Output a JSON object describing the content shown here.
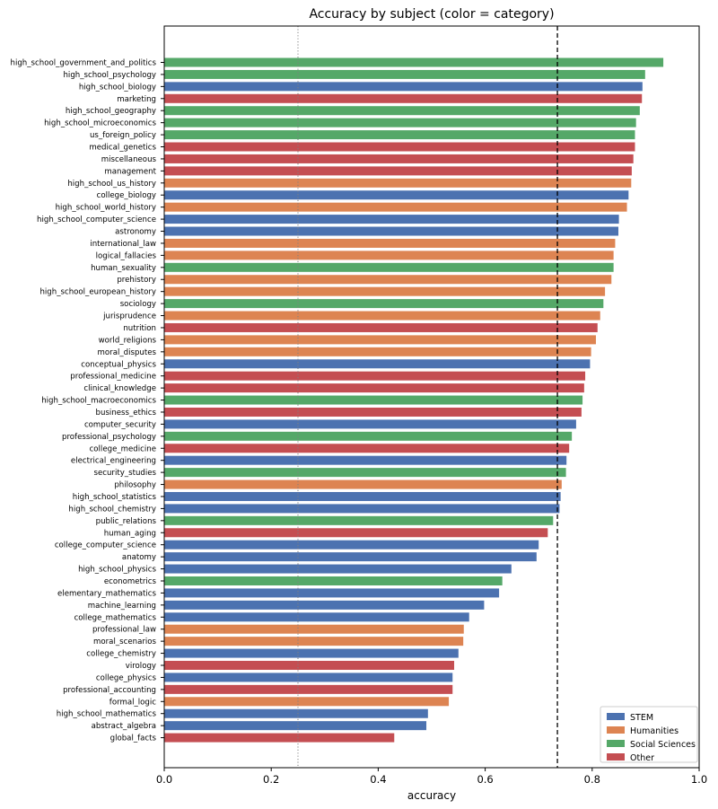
{
  "chart_data": {
    "type": "bar",
    "orientation": "horizontal",
    "title": "Accuracy by subject (color = category)",
    "xlabel": "accuracy",
    "ylabel": "",
    "xlim": [
      0.0,
      1.0
    ],
    "xticks": [
      "0.0",
      "0.2",
      "0.4",
      "0.6",
      "0.8",
      "1.0"
    ],
    "grid": false,
    "legend_position": "bottom-right",
    "reference_lines": [
      {
        "x": 0.25,
        "style": "dotted",
        "color": "#808080"
      },
      {
        "x": 0.735,
        "style": "dashed",
        "color": "#000000"
      }
    ],
    "categories_legend": [
      {
        "name": "STEM",
        "color": "#4c72b0"
      },
      {
        "name": "Humanities",
        "color": "#dd8452"
      },
      {
        "name": "Social Sciences",
        "color": "#55a868"
      },
      {
        "name": "Other",
        "color": "#c44e52"
      }
    ],
    "bars": [
      {
        "label": "high_school_government_and_politics",
        "value": 0.933,
        "category": "Social Sciences"
      },
      {
        "label": "high_school_psychology",
        "value": 0.899,
        "category": "Social Sciences"
      },
      {
        "label": "high_school_biology",
        "value": 0.894,
        "category": "STEM"
      },
      {
        "label": "marketing",
        "value": 0.893,
        "category": "Other"
      },
      {
        "label": "high_school_geography",
        "value": 0.889,
        "category": "Social Sciences"
      },
      {
        "label": "high_school_microeconomics",
        "value": 0.882,
        "category": "Social Sciences"
      },
      {
        "label": "us_foreign_policy",
        "value": 0.88,
        "category": "Social Sciences"
      },
      {
        "label": "medical_genetics",
        "value": 0.88,
        "category": "Other"
      },
      {
        "label": "miscellaneous",
        "value": 0.877,
        "category": "Other"
      },
      {
        "label": "management",
        "value": 0.874,
        "category": "Other"
      },
      {
        "label": "high_school_us_history",
        "value": 0.873,
        "category": "Humanities"
      },
      {
        "label": "college_biology",
        "value": 0.868,
        "category": "STEM"
      },
      {
        "label": "high_school_world_history",
        "value": 0.865,
        "category": "Humanities"
      },
      {
        "label": "high_school_computer_science",
        "value": 0.85,
        "category": "STEM"
      },
      {
        "label": "astronomy",
        "value": 0.849,
        "category": "STEM"
      },
      {
        "label": "international_law",
        "value": 0.843,
        "category": "Humanities"
      },
      {
        "label": "logical_fallacies",
        "value": 0.84,
        "category": "Humanities"
      },
      {
        "label": "human_sexuality",
        "value": 0.84,
        "category": "Social Sciences"
      },
      {
        "label": "prehistory",
        "value": 0.836,
        "category": "Humanities"
      },
      {
        "label": "high_school_european_history",
        "value": 0.824,
        "category": "Humanities"
      },
      {
        "label": "sociology",
        "value": 0.821,
        "category": "Social Sciences"
      },
      {
        "label": "jurisprudence",
        "value": 0.815,
        "category": "Humanities"
      },
      {
        "label": "nutrition",
        "value": 0.81,
        "category": "Other"
      },
      {
        "label": "world_religions",
        "value": 0.807,
        "category": "Humanities"
      },
      {
        "label": "moral_disputes",
        "value": 0.798,
        "category": "Humanities"
      },
      {
        "label": "conceptual_physics",
        "value": 0.796,
        "category": "STEM"
      },
      {
        "label": "professional_medicine",
        "value": 0.787,
        "category": "Other"
      },
      {
        "label": "clinical_knowledge",
        "value": 0.785,
        "category": "Other"
      },
      {
        "label": "high_school_macroeconomics",
        "value": 0.782,
        "category": "Social Sciences"
      },
      {
        "label": "business_ethics",
        "value": 0.78,
        "category": "Other"
      },
      {
        "label": "computer_security",
        "value": 0.77,
        "category": "STEM"
      },
      {
        "label": "professional_psychology",
        "value": 0.762,
        "category": "Social Sciences"
      },
      {
        "label": "college_medicine",
        "value": 0.757,
        "category": "Other"
      },
      {
        "label": "electrical_engineering",
        "value": 0.752,
        "category": "STEM"
      },
      {
        "label": "security_studies",
        "value": 0.751,
        "category": "Social Sciences"
      },
      {
        "label": "philosophy",
        "value": 0.743,
        "category": "Humanities"
      },
      {
        "label": "high_school_statistics",
        "value": 0.741,
        "category": "STEM"
      },
      {
        "label": "high_school_chemistry",
        "value": 0.739,
        "category": "STEM"
      },
      {
        "label": "public_relations",
        "value": 0.727,
        "category": "Social Sciences"
      },
      {
        "label": "human_aging",
        "value": 0.717,
        "category": "Other"
      },
      {
        "label": "college_computer_science",
        "value": 0.7,
        "category": "STEM"
      },
      {
        "label": "anatomy",
        "value": 0.696,
        "category": "STEM"
      },
      {
        "label": "high_school_physics",
        "value": 0.649,
        "category": "STEM"
      },
      {
        "label": "econometrics",
        "value": 0.632,
        "category": "Social Sciences"
      },
      {
        "label": "elementary_mathematics",
        "value": 0.626,
        "category": "STEM"
      },
      {
        "label": "machine_learning",
        "value": 0.598,
        "category": "STEM"
      },
      {
        "label": "college_mathematics",
        "value": 0.57,
        "category": "STEM"
      },
      {
        "label": "professional_law",
        "value": 0.56,
        "category": "Humanities"
      },
      {
        "label": "moral_scenarios",
        "value": 0.559,
        "category": "Humanities"
      },
      {
        "label": "college_chemistry",
        "value": 0.55,
        "category": "STEM"
      },
      {
        "label": "virology",
        "value": 0.542,
        "category": "Other"
      },
      {
        "label": "college_physics",
        "value": 0.539,
        "category": "STEM"
      },
      {
        "label": "professional_accounting",
        "value": 0.539,
        "category": "Other"
      },
      {
        "label": "formal_logic",
        "value": 0.532,
        "category": "Humanities"
      },
      {
        "label": "high_school_mathematics",
        "value": 0.493,
        "category": "STEM"
      },
      {
        "label": "abstract_algebra",
        "value": 0.49,
        "category": "STEM"
      },
      {
        "label": "global_facts",
        "value": 0.43,
        "category": "Other"
      }
    ]
  }
}
